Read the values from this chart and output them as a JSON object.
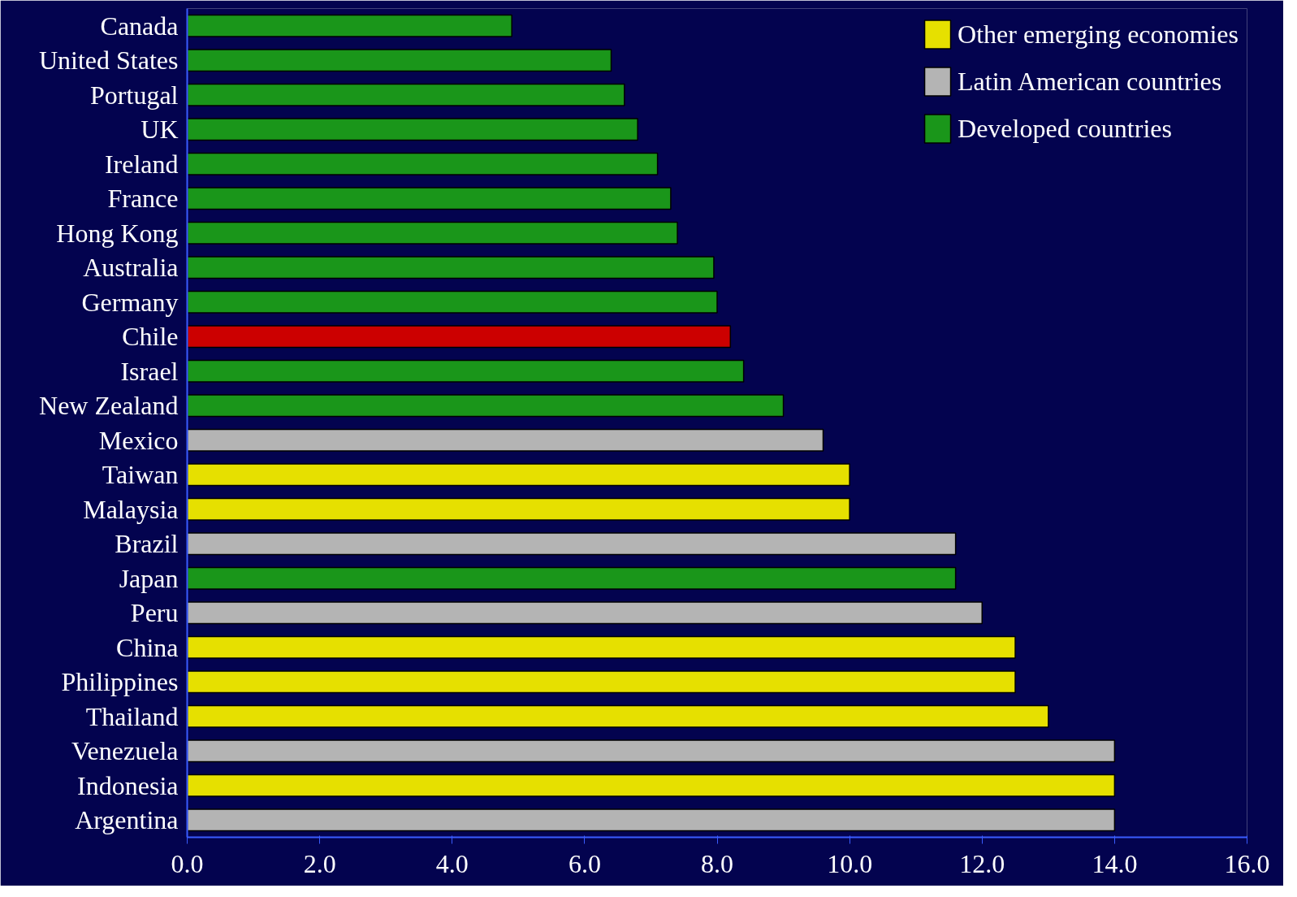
{
  "chart_data": {
    "type": "bar",
    "orientation": "horizontal",
    "categories": [
      "Canada",
      "United States",
      "Portugal",
      "UK",
      "Ireland",
      "France",
      "Hong Kong",
      "Australia",
      "Germany",
      "Chile",
      "Israel",
      "New Zealand",
      "Mexico",
      "Taiwan",
      "Malaysia",
      "Brazil",
      "Japan",
      "Peru",
      "China",
      "Philippines",
      "Thailand",
      "Venezuela",
      "Indonesia",
      "Argentina"
    ],
    "series": [
      {
        "name": "Other emerging economies",
        "color": "#e6e000",
        "values": [
          null,
          null,
          null,
          null,
          null,
          null,
          null,
          null,
          null,
          null,
          null,
          null,
          null,
          10.0,
          10.0,
          null,
          null,
          null,
          12.5,
          12.5,
          13.0,
          null,
          14.0,
          null
        ]
      },
      {
        "name": "Latin American countries",
        "color": "#b4b4b4",
        "colors": [
          null,
          null,
          null,
          null,
          null,
          null,
          null,
          null,
          null,
          "#cc0000",
          null,
          null,
          "#b4b4b4",
          null,
          null,
          "#b4b4b4",
          null,
          "#b4b4b4",
          null,
          null,
          null,
          "#b4b4b4",
          null,
          "#b4b4b4"
        ],
        "values": [
          null,
          null,
          null,
          null,
          null,
          null,
          null,
          null,
          null,
          8.2,
          null,
          null,
          9.6,
          null,
          null,
          11.6,
          null,
          12.0,
          null,
          null,
          null,
          14.0,
          null,
          14.0
        ]
      },
      {
        "name": "Developed countries",
        "color": "#1a961a",
        "values": [
          4.9,
          6.4,
          6.6,
          6.8,
          7.1,
          7.3,
          7.4,
          7.95,
          8.0,
          null,
          8.4,
          9.0,
          null,
          null,
          null,
          null,
          11.6,
          null,
          null,
          null,
          null,
          null,
          null,
          null
        ]
      }
    ],
    "xlim": [
      0,
      16
    ],
    "xticks": [
      {
        "value": 0,
        "label": "0.0"
      },
      {
        "value": 2,
        "label": "2.0"
      },
      {
        "value": 4,
        "label": "4.0"
      },
      {
        "value": 6,
        "label": "6.0"
      },
      {
        "value": 8,
        "label": "8.0"
      },
      {
        "value": 10,
        "label": "10.0"
      },
      {
        "value": 12,
        "label": "12.0"
      },
      {
        "value": 14,
        "label": "14.0"
      },
      {
        "value": 16,
        "label": "16.0"
      }
    ],
    "grid": false,
    "legend": "top right"
  }
}
